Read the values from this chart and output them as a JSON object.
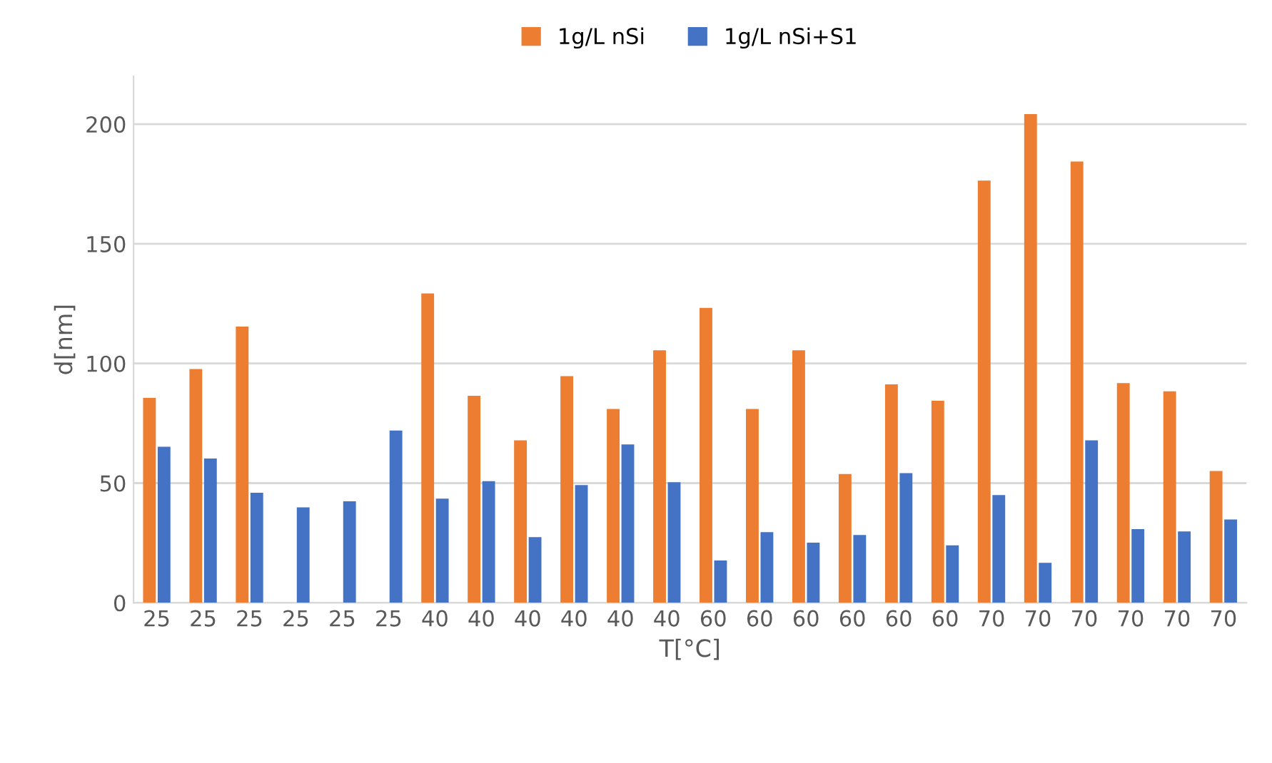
{
  "chart_data": {
    "type": "bar",
    "xlabel": "T[°C]",
    "ylabel": "d[nm]",
    "categories": [
      "25",
      "25",
      "25",
      "25",
      "25",
      "25",
      "40",
      "40",
      "40",
      "40",
      "40",
      "40",
      "60",
      "60",
      "60",
      "60",
      "60",
      "60",
      "70",
      "70",
      "70",
      "70",
      "70",
      "70"
    ],
    "series": [
      {
        "name": "1g/L nSi",
        "color": "#ed7d31",
        "values": [
          85.6,
          97.7,
          115.4,
          null,
          null,
          null,
          129.3,
          86.5,
          67.9,
          94.7,
          81,
          105.5,
          123.2,
          81,
          105.5,
          53.8,
          91.3,
          84.4,
          176.4,
          204.2,
          184.4,
          91.8,
          88.4,
          55.1
        ]
      },
      {
        "name": "1g/L nSi+S1",
        "color": "#4472c4",
        "values": [
          65.2,
          60.3,
          46,
          39.9,
          42.4,
          72,
          43.5,
          50.8,
          27.4,
          49.2,
          66.2,
          50.4,
          17.7,
          29.5,
          25.1,
          28.3,
          54.2,
          24,
          45,
          16.7,
          67.9,
          30.8,
          29.8,
          34.8
        ]
      }
    ],
    "ylim": [
      0,
      220
    ],
    "yticks": [
      0,
      50,
      100,
      150,
      200
    ],
    "grid": "y",
    "legend": "top"
  }
}
